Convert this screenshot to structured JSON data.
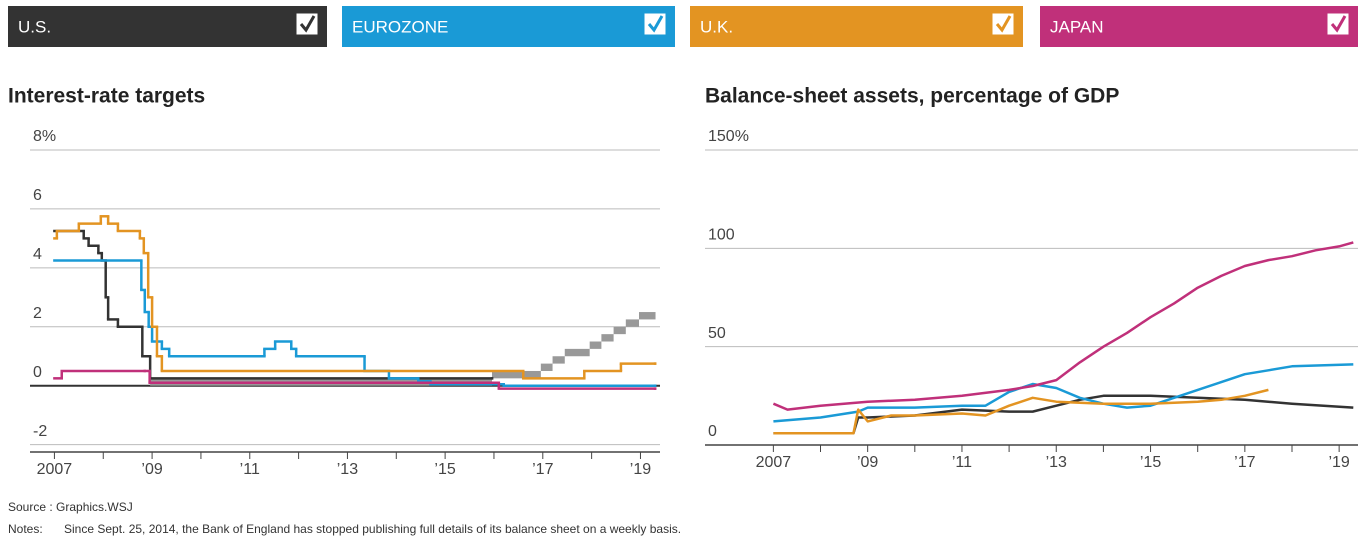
{
  "chart_data": [
    {
      "type": "step",
      "title": "Interest-rate targets",
      "xlim": [
        2006.5,
        2019.4
      ],
      "ylim": [
        -2.25,
        8
      ],
      "yticks": [
        -2,
        0,
        2,
        4,
        6,
        {
          "value": 8,
          "label": "8%"
        }
      ],
      "xticks": [
        {
          "value": 2007,
          "label": "2007"
        },
        {
          "value": 2009,
          "label": "’09"
        },
        {
          "value": 2011,
          "label": "’11"
        },
        {
          "value": 2013,
          "label": "’13"
        },
        {
          "value": 2015,
          "label": "’15"
        },
        {
          "value": 2017,
          "label": "’17"
        },
        {
          "value": 2019,
          "label": "’19"
        }
      ],
      "xminorticks": [
        2008,
        2010,
        2012,
        2014,
        2016,
        2018
      ],
      "grid": true,
      "series": [
        {
          "name": "U.S.",
          "color": "#333333",
          "x": [
            2007,
            2007.6,
            2007.7,
            2007.9,
            2007.97,
            2008.05,
            2008.1,
            2008.3,
            2008.8,
            2008.96,
            2015.96
          ],
          "values": [
            5.25,
            5.0,
            4.75,
            4.5,
            4.25,
            3.0,
            2.25,
            2.0,
            1.0,
            0.25,
            0.25
          ]
        },
        {
          "name": "EUROZONE",
          "color": "#1a9ad6",
          "x": [
            2007,
            2008.78,
            2008.85,
            2008.93,
            2009.0,
            2009.2,
            2009.35,
            2011.3,
            2011.52,
            2011.85,
            2011.95,
            2013.35,
            2013.85,
            2014.45,
            2014.7,
            2016.2,
            2019.3
          ],
          "values": [
            4.25,
            3.25,
            2.5,
            2.0,
            1.5,
            1.25,
            1.0,
            1.25,
            1.5,
            1.25,
            1.0,
            0.5,
            0.25,
            0.15,
            0.05,
            0.0,
            0.0
          ]
        },
        {
          "name": "U.K.",
          "color": "#e39422",
          "x": [
            2007,
            2007.05,
            2007.5,
            2007.95,
            2008.1,
            2008.3,
            2008.75,
            2008.83,
            2008.92,
            2009.0,
            2009.1,
            2009.2,
            2016.6,
            2017.85,
            2018.6,
            2019.3
          ],
          "values": [
            5.0,
            5.25,
            5.5,
            5.75,
            5.5,
            5.25,
            5.0,
            4.5,
            3.0,
            2.0,
            1.0,
            0.5,
            0.25,
            0.5,
            0.75,
            0.75
          ]
        },
        {
          "name": "JAPAN",
          "color": "#c0307a",
          "x": [
            2007,
            2007.15,
            2008.85,
            2008.95,
            2016.1,
            2019.3
          ],
          "values": [
            0.25,
            0.5,
            0.5,
            0.1,
            -0.1,
            -0.1
          ]
        }
      ],
      "band": {
        "color": "#999999",
        "x": [
          2008.96,
          2015.96,
          2016.96,
          2017.2,
          2017.45,
          2017.96,
          2018.2,
          2018.45,
          2018.7,
          2018.97,
          2019.3
        ],
        "low": [
          0,
          0.25,
          0.5,
          0.75,
          1.0,
          1.25,
          1.5,
          1.75,
          2.0,
          2.25,
          2.25
        ],
        "high": [
          0.25,
          0.5,
          0.75,
          1.0,
          1.25,
          1.5,
          1.75,
          2.0,
          2.25,
          2.5,
          2.5
        ]
      }
    },
    {
      "type": "line",
      "title": "Balance-sheet assets, percentage of GDP",
      "xlim": [
        2005.55,
        2019.4
      ],
      "ylim": [
        0,
        150
      ],
      "yticks": [
        0,
        50,
        100,
        {
          "value": 150,
          "label": "150%"
        }
      ],
      "xticks": [
        {
          "value": 2007,
          "label": "2007"
        },
        {
          "value": 2009,
          "label": "’09"
        },
        {
          "value": 2011,
          "label": "’11"
        },
        {
          "value": 2013,
          "label": "’13"
        },
        {
          "value": 2015,
          "label": "’15"
        },
        {
          "value": 2017,
          "label": "’17"
        },
        {
          "value": 2019,
          "label": "’19"
        }
      ],
      "xminorticks": [
        2008,
        2010,
        2012,
        2014,
        2016,
        2018
      ],
      "grid": true,
      "series": [
        {
          "name": "U.S.",
          "color": "#333333",
          "x": [
            2007,
            2008.7,
            2008.8,
            2009,
            2010,
            2011,
            2012,
            2012.5,
            2013,
            2013.5,
            2014,
            2014.5,
            2015,
            2016,
            2017,
            2018,
            2019.3
          ],
          "values": [
            6,
            6,
            14,
            14,
            15,
            18,
            17,
            17,
            20,
            23,
            25,
            25,
            25,
            24,
            23,
            21,
            19
          ]
        },
        {
          "name": "EUROZONE",
          "color": "#1a9ad6",
          "x": [
            2007,
            2008,
            2008.8,
            2009,
            2010,
            2011,
            2011.5,
            2012,
            2012.5,
            2013,
            2013.5,
            2014,
            2014.5,
            2015,
            2015.5,
            2016,
            2016.5,
            2017,
            2017.5,
            2018,
            2019.3
          ],
          "values": [
            12,
            14,
            17,
            19,
            19,
            20,
            20,
            27,
            31,
            29,
            24,
            21,
            19,
            20,
            24,
            28,
            32,
            36,
            38,
            40,
            41
          ]
        },
        {
          "name": "U.K.",
          "color": "#e39422",
          "x": [
            2007,
            2008.7,
            2008.8,
            2009,
            2009.5,
            2010,
            2011,
            2011.5,
            2012,
            2012.5,
            2013,
            2014,
            2015,
            2016,
            2016.5,
            2017,
            2017.5
          ],
          "values": [
            6,
            6,
            18,
            12,
            15,
            15,
            16,
            15,
            20,
            24,
            22,
            21,
            21,
            22,
            23,
            25,
            28
          ]
        },
        {
          "name": "JAPAN",
          "color": "#c0307a",
          "x": [
            2007,
            2007.3,
            2008,
            2009,
            2010,
            2011,
            2012,
            2012.5,
            2013,
            2013.5,
            2014,
            2014.5,
            2015,
            2015.5,
            2016,
            2016.5,
            2017,
            2017.5,
            2018,
            2018.5,
            2019,
            2019.3
          ],
          "values": [
            21,
            18,
            20,
            22,
            23,
            25,
            28,
            30,
            33,
            42,
            50,
            57,
            65,
            72,
            80,
            86,
            91,
            94,
            96,
            99,
            101,
            103
          ]
        }
      ]
    }
  ],
  "source": "Source : Graphics.WSJ",
  "notes_label": "Notes:",
  "notes": "Since Sept. 25, 2014, the Bank of England has stopped publishing full details of its balance sheet on a weekly basis."
}
